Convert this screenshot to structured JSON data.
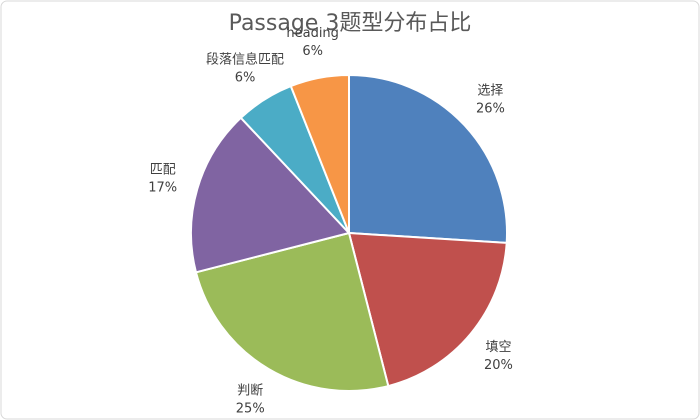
{
  "chart_data": {
    "type": "pie",
    "title": "Passage 3题型分布占比",
    "categories": [
      "选择",
      "填空",
      "判断",
      "匹配",
      "段落信息匹配",
      "heading"
    ],
    "values": [
      26,
      20,
      25,
      17,
      6,
      6
    ],
    "value_labels": [
      "26%",
      "20%",
      "25%",
      "17%",
      "6%",
      "6%"
    ],
    "colors": [
      "#4f81bd",
      "#c0504d",
      "#9bbb59",
      "#8064a2",
      "#4bacc6",
      "#f79646"
    ]
  }
}
